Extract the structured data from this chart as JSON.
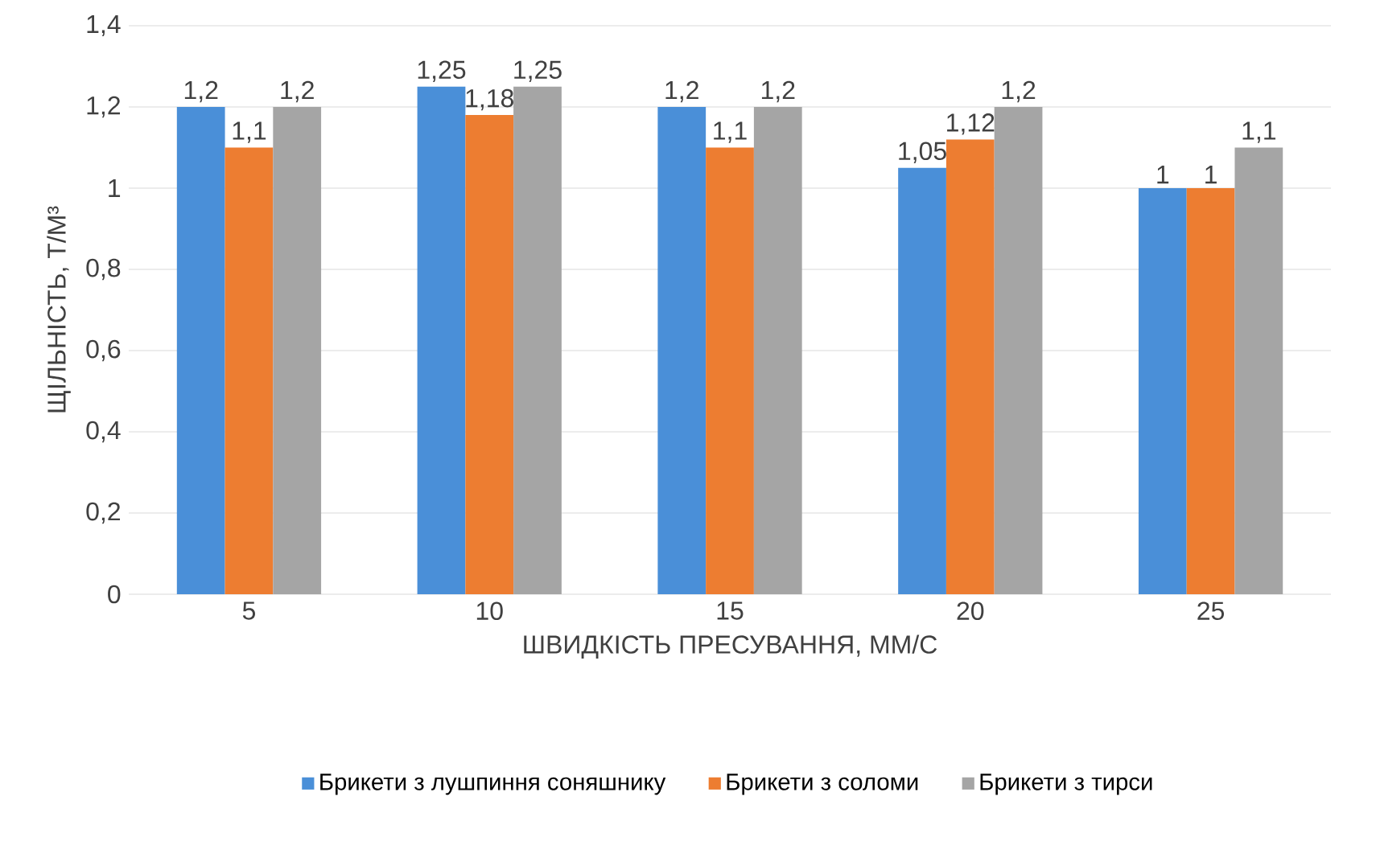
{
  "chart_data": {
    "type": "bar",
    "categories": [
      "5",
      "10",
      "15",
      "20",
      "25"
    ],
    "xlabel": "ШВИДКІСТЬ ПРЕСУВАННЯ, ММ/С",
    "ylabel": "ЩІЛЬНІСТЬ, Т/М³",
    "ylim": [
      0,
      1.4
    ],
    "yticks": [
      0,
      {
        "value": 0.2,
        "label": "0,2"
      },
      {
        "value": 0.4,
        "label": "0,4"
      },
      {
        "value": 0.6,
        "label": "0,6"
      },
      {
        "value": 0.8,
        "label": "0,8"
      },
      1,
      {
        "value": 1.2,
        "label": "1,2"
      },
      {
        "value": 1.4,
        "label": "1,4"
      }
    ],
    "grid": "y",
    "legend": "bottom",
    "series": [
      {
        "name": "Брикети з лушпиння  соняшнику",
        "color": "#4a8fd8",
        "values": [
          1.2,
          1.25,
          1.2,
          1.05,
          1
        ],
        "value_labels": [
          "1,2",
          "1,25",
          "1,2",
          "1,05",
          "1"
        ]
      },
      {
        "name": "Брикети з соломи",
        "color": "#ed7d31",
        "values": [
          1.1,
          1.18,
          1.1,
          1.12,
          1
        ],
        "value_labels": [
          "1,1",
          "1,18",
          "1,1",
          "1,12",
          "1"
        ]
      },
      {
        "name": "Брикети з тирси",
        "color": "#a5a5a5",
        "values": [
          1.2,
          1.25,
          1.2,
          1.2,
          1.1
        ],
        "value_labels": [
          "1,2",
          "1,25",
          "1,2",
          "1,2",
          "1,1"
        ]
      }
    ]
  }
}
